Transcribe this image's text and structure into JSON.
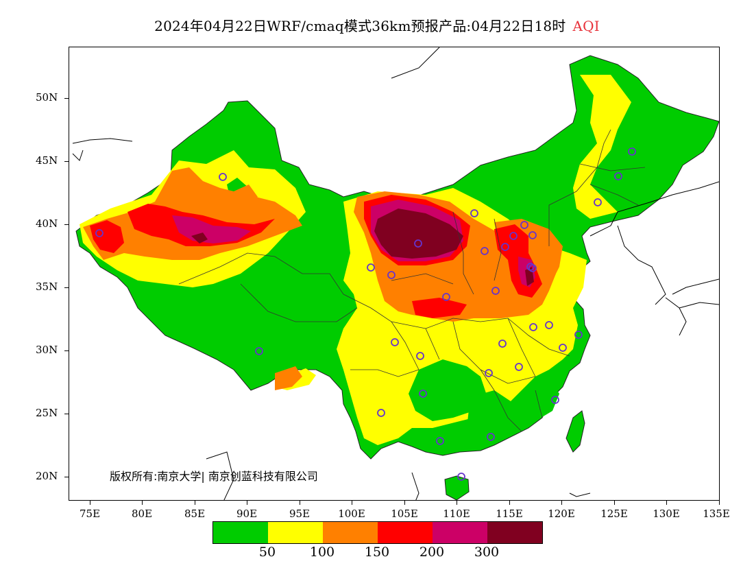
{
  "title": {
    "main": "2024年04月22日WRF/cmaq模式36km预报产品:04月22日18时",
    "variable": "AQI",
    "variable_color": "#e8323a"
  },
  "axes": {
    "lat_labels": [
      "50N",
      "45N",
      "40N",
      "35N",
      "30N",
      "25N",
      "20N"
    ],
    "lon_labels": [
      "75E",
      "80E",
      "85E",
      "90E",
      "95E",
      "100E",
      "105E",
      "110E",
      "115E",
      "120E",
      "125E",
      "130E",
      "135E"
    ]
  },
  "copyright": "版权所有:南京大学| 南京创蓝科技有限公司",
  "legend": {
    "colors": [
      "#00cc00",
      "#ffff00",
      "#ff8000",
      "#ff0000",
      "#cc0066",
      "#800020"
    ],
    "labels": [
      "50",
      "100",
      "150",
      "200",
      "300"
    ]
  }
}
